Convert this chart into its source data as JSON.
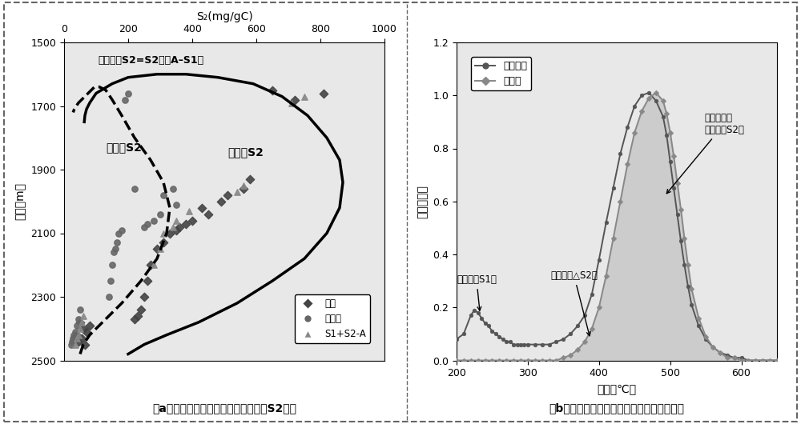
{
  "panel_a": {
    "title_top": "S₂(mg/gC)",
    "xlabel": "S₂(mg/gC)",
    "ylabel": "深度（m）",
    "xlim": [
      0,
      1000
    ],
    "ylim": [
      2500,
      1500
    ],
    "xticks": [
      0,
      200,
      400,
      600,
      800,
      1000
    ],
    "yticks": [
      1500,
      1700,
      1900,
      2100,
      2300,
      2500
    ],
    "caption": "（a）青山口组页屹抖提前后裂解烴烳S2对比",
    "annotation": "抽提后的S2=S2－（A–S1）",
    "label_before": "抽提前S2",
    "label_after": "抽提后S2",
    "legend_original": "原始",
    "legend_extracted": "抽提后",
    "legend_s1s2": "S1+S2-A",
    "scatter_original_x": [
      650,
      720,
      810,
      580,
      560,
      510,
      490,
      430,
      450,
      400,
      380,
      360,
      350,
      330,
      310,
      290,
      270,
      260,
      250,
      240,
      230,
      220,
      50,
      80,
      60,
      70,
      40,
      55,
      45,
      65
    ],
    "scatter_original_y": [
      1650,
      1680,
      1660,
      1930,
      1960,
      1980,
      2000,
      2020,
      2040,
      2060,
      2070,
      2080,
      2090,
      2100,
      2130,
      2150,
      2200,
      2250,
      2300,
      2340,
      2360,
      2370,
      2380,
      2390,
      2400,
      2410,
      2420,
      2430,
      2440,
      2450
    ],
    "scatter_extracted_x": [
      200,
      190,
      220,
      310,
      340,
      350,
      300,
      280,
      260,
      250,
      180,
      170,
      165,
      160,
      155,
      150,
      145,
      140,
      50,
      45,
      40,
      35,
      30,
      28,
      25,
      22
    ],
    "scatter_extracted_y": [
      1660,
      1680,
      1960,
      1980,
      1960,
      2010,
      2040,
      2060,
      2070,
      2080,
      2090,
      2100,
      2130,
      2150,
      2160,
      2200,
      2250,
      2300,
      2340,
      2370,
      2390,
      2410,
      2420,
      2430,
      2440,
      2450
    ],
    "scatter_s1s2_x": [
      750,
      710,
      560,
      540,
      390,
      350,
      340,
      310,
      300,
      280,
      60,
      55,
      50,
      45,
      40,
      35
    ],
    "scatter_s1s2_y": [
      1670,
      1690,
      1950,
      1970,
      2030,
      2060,
      2080,
      2100,
      2150,
      2200,
      2360,
      2380,
      2400,
      2420,
      2430,
      2450
    ],
    "curve_before_x": [
      200,
      250,
      320,
      420,
      540,
      650,
      750,
      820,
      860,
      870,
      860,
      820,
      760,
      680,
      590,
      480,
      380,
      290,
      200,
      150,
      100,
      80,
      70,
      65,
      63
    ],
    "curve_before_y": [
      2480,
      2450,
      2420,
      2380,
      2320,
      2250,
      2180,
      2100,
      2020,
      1940,
      1870,
      1800,
      1730,
      1670,
      1630,
      1610,
      1600,
      1600,
      1610,
      1630,
      1660,
      1690,
      1710,
      1730,
      1750
    ],
    "curve_after_x": [
      50,
      60,
      80,
      120,
      180,
      240,
      290,
      320,
      330,
      310,
      270,
      220,
      180,
      150,
      130,
      110,
      95,
      85,
      75,
      65,
      55,
      45,
      38,
      32,
      28
    ],
    "curve_after_y": [
      2480,
      2450,
      2420,
      2380,
      2320,
      2250,
      2180,
      2100,
      2020,
      1940,
      1870,
      1800,
      1730,
      1680,
      1650,
      1640,
      1640,
      1650,
      1660,
      1670,
      1680,
      1690,
      1700,
      1710,
      1720
    ]
  },
  "panel_b": {
    "xlabel": "温度（℃）",
    "ylabel": "检测响应值",
    "xlim": [
      200,
      650
    ],
    "ylim": [
      0,
      1.2
    ],
    "xticks": [
      200,
      300,
      400,
      500,
      600
    ],
    "yticks": [
      0,
      0.2,
      0.4,
      0.6,
      0.8,
      1.0,
      1.2
    ],
    "caption": "（b）青山口组页屹抖提前后屹石热解图对比",
    "legend_original": "原始样品",
    "legend_extracted": "抽提后",
    "ann_free_oil": "游离油（S1）",
    "ann_adsorbed": "吸附油（△S2）",
    "ann_solid_line1": "固体有机质",
    "ann_solid_line2": "（抽提后S2）",
    "original_temp": [
      200,
      210,
      220,
      225,
      230,
      235,
      240,
      245,
      250,
      255,
      260,
      265,
      270,
      275,
      280,
      285,
      290,
      295,
      300,
      310,
      320,
      330,
      340,
      350,
      360,
      370,
      380,
      390,
      400,
      410,
      420,
      430,
      440,
      450,
      460,
      470,
      480,
      490,
      495,
      500,
      505,
      510,
      515,
      520,
      525,
      530,
      540,
      550,
      560,
      570,
      580,
      590,
      600,
      610,
      620,
      630,
      640,
      650
    ],
    "original_val": [
      0.08,
      0.1,
      0.17,
      0.19,
      0.18,
      0.16,
      0.14,
      0.13,
      0.11,
      0.1,
      0.09,
      0.08,
      0.07,
      0.07,
      0.06,
      0.06,
      0.06,
      0.06,
      0.06,
      0.06,
      0.06,
      0.06,
      0.07,
      0.08,
      0.1,
      0.13,
      0.17,
      0.25,
      0.38,
      0.52,
      0.65,
      0.78,
      0.88,
      0.96,
      1.0,
      1.01,
      0.98,
      0.92,
      0.85,
      0.75,
      0.65,
      0.55,
      0.45,
      0.36,
      0.28,
      0.21,
      0.13,
      0.08,
      0.05,
      0.03,
      0.02,
      0.01,
      0.01,
      0.0,
      0.0,
      0.0,
      0.0,
      0.0
    ],
    "extracted_temp": [
      200,
      210,
      220,
      230,
      240,
      250,
      260,
      270,
      280,
      290,
      300,
      310,
      320,
      330,
      340,
      350,
      360,
      370,
      380,
      390,
      400,
      410,
      420,
      430,
      440,
      450,
      460,
      470,
      480,
      490,
      495,
      500,
      505,
      510,
      515,
      520,
      525,
      530,
      540,
      550,
      560,
      570,
      580,
      590,
      600,
      610,
      620,
      630,
      640,
      650
    ],
    "extracted_val": [
      0.0,
      0.0,
      0.0,
      0.0,
      0.0,
      0.0,
      0.0,
      0.0,
      0.0,
      0.0,
      0.0,
      0.0,
      0.0,
      0.0,
      0.0,
      0.01,
      0.02,
      0.04,
      0.07,
      0.12,
      0.2,
      0.32,
      0.46,
      0.6,
      0.74,
      0.86,
      0.94,
      0.99,
      1.01,
      0.98,
      0.93,
      0.86,
      0.77,
      0.67,
      0.57,
      0.46,
      0.36,
      0.27,
      0.16,
      0.09,
      0.05,
      0.03,
      0.01,
      0.01,
      0.0,
      0.0,
      0.0,
      0.0,
      0.0,
      0.0
    ]
  },
  "bg_color": "#e8e8e8",
  "border_color": "#555555"
}
